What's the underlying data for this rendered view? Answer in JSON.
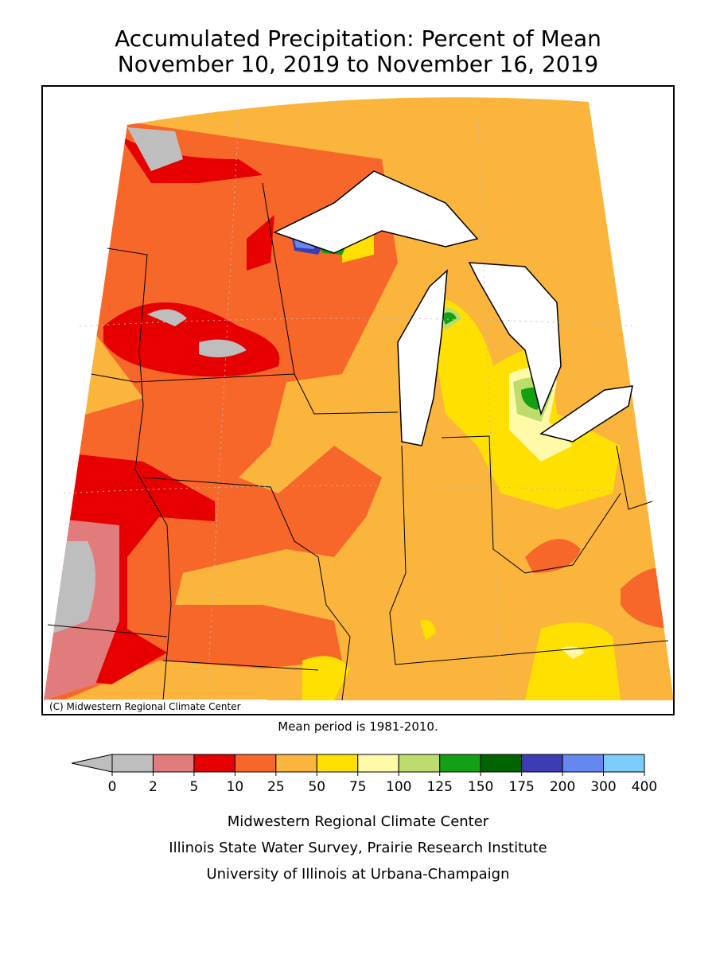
{
  "header": {
    "title_lines": [
      "Accumulated Precipitation: Percent of Mean",
      "November 10, 2019 to November 16, 2019"
    ]
  },
  "map": {
    "copyright": "(C) Midwestern Regional Climate Center",
    "note": "Mean period is 1981-2010."
  },
  "legend": {
    "ticks": [
      0,
      2,
      5,
      10,
      25,
      50,
      75,
      100,
      125,
      150,
      175,
      200,
      300,
      400
    ],
    "below_color": "#bebebe",
    "colors": [
      "#bebebe",
      "#e27c7c",
      "#e60000",
      "#f8672a",
      "#fbb53c",
      "#ffe000",
      "#fff9a8",
      "#bcdc6c",
      "#14a014",
      "#006400",
      "#3c3cb4",
      "#6488f0",
      "#7ccdfa"
    ]
  },
  "footer": {
    "lines": [
      "Midwestern Regional Climate Center",
      "Illinois State Water Survey, Prairie Research Institute",
      "University of Illinois at Urbana-Champaign"
    ]
  }
}
